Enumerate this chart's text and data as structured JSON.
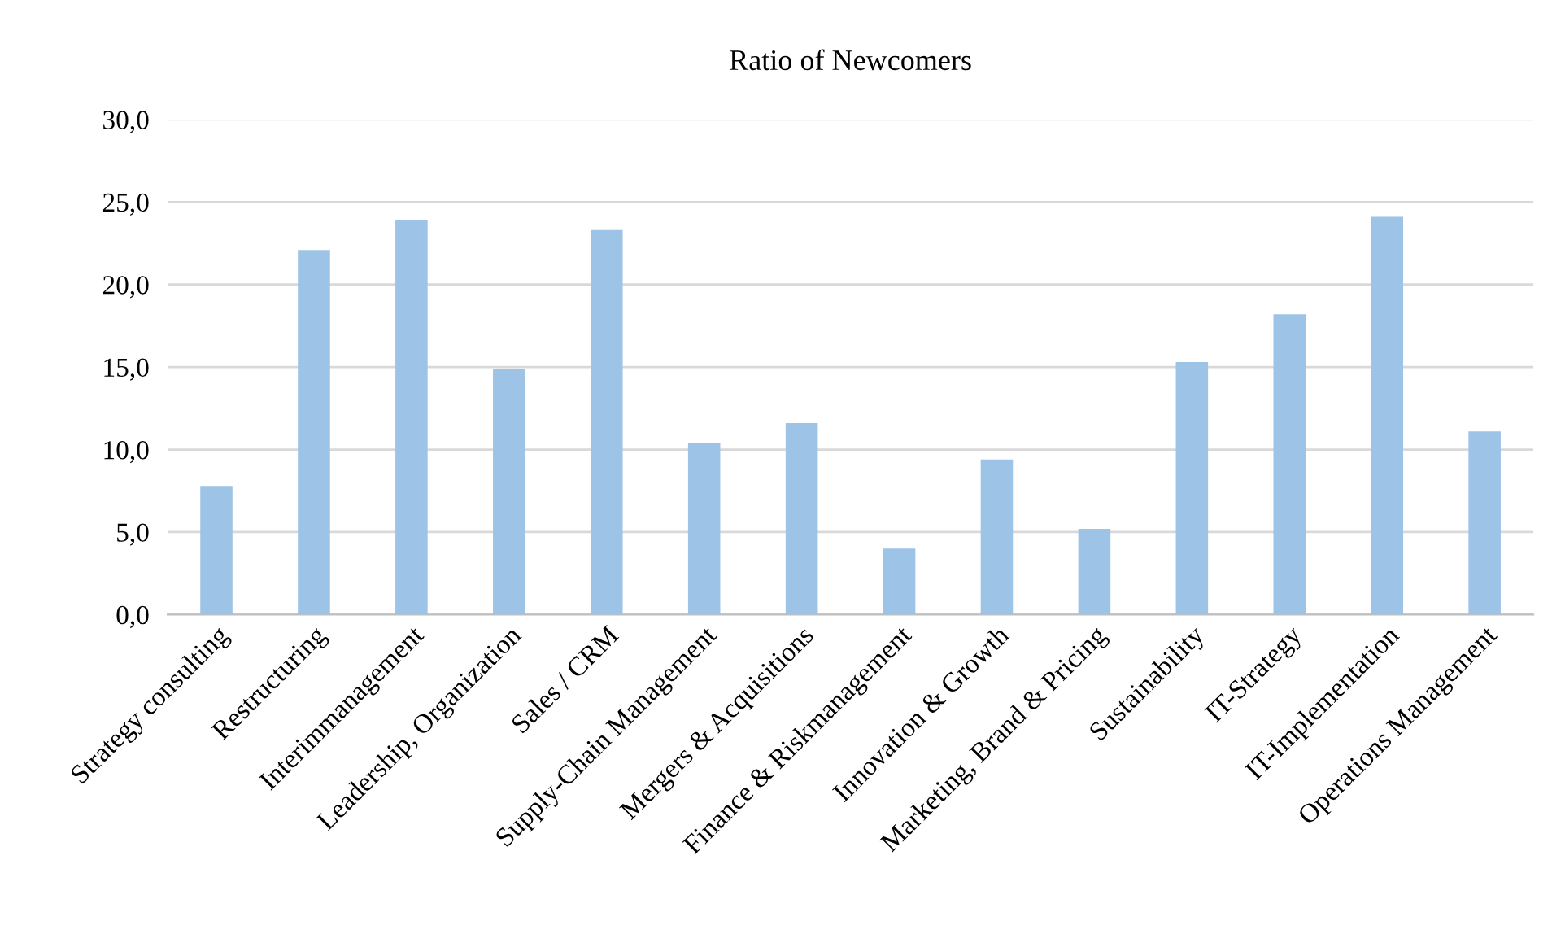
{
  "chart_data": {
    "type": "bar",
    "title": "Ratio of Newcomers",
    "categories": [
      "Strategy consulting",
      "Restructuring",
      "Interimmanagement",
      "Leadership, Organization",
      "Sales / CRM",
      "Supply-Chain Management",
      "Mergers & Acquisitions",
      "Finance & Riskmanagement",
      "Innovation & Growth",
      "Marketing, Brand & Pricing",
      "Sustainability",
      "IT-Strategy",
      "IT-Implementation",
      "Operations Management"
    ],
    "values": [
      7.8,
      22.1,
      23.9,
      14.9,
      23.3,
      10.4,
      11.6,
      4.0,
      9.4,
      5.2,
      15.3,
      18.2,
      24.1,
      11.1
    ],
    "color": "#9dc3e6",
    "ylim": [
      0,
      30
    ],
    "yticks": [
      {
        "value": 0,
        "label": "0,0"
      },
      {
        "value": 5,
        "label": "5,0"
      },
      {
        "value": 10,
        "label": "10,0"
      },
      {
        "value": 15,
        "label": "15,0"
      },
      {
        "value": 20,
        "label": "20,0"
      },
      {
        "value": 25,
        "label": "25,0"
      },
      {
        "value": 30,
        "label": "30,0"
      }
    ],
    "grid": "y"
  }
}
